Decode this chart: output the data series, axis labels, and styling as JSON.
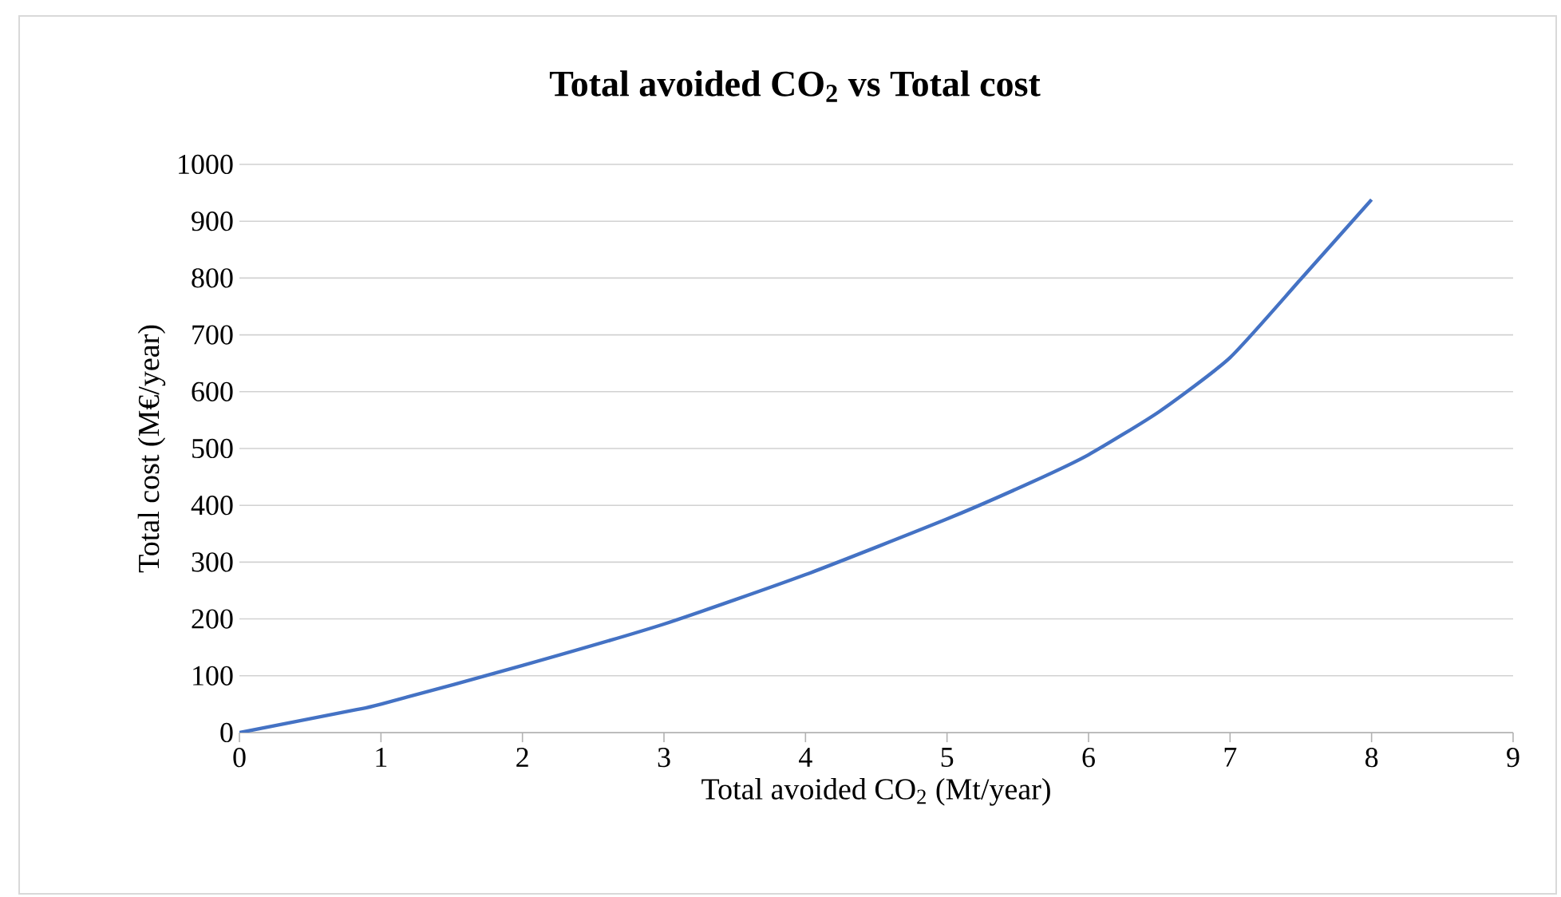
{
  "chart_data": {
    "type": "line",
    "title": "Total avoided CO$_{2}$ vs Total cost",
    "xlabel": "Total avoided CO$_{2}$ (Mt/year)",
    "ylabel": "Total cost (M€/year)",
    "series": [
      {
        "color": "#4472c4",
        "x": [
          0,
          0.8,
          1,
          2,
          3,
          4,
          5,
          5.6,
          6,
          6.5,
          7,
          7.5,
          8
        ],
        "values": [
          0,
          39,
          50,
          118,
          191,
          278,
          376,
          441,
          489,
          565,
          660,
          798,
          938
        ]
      }
    ],
    "xlim": [
      0,
      9
    ],
    "xticks": [
      0,
      1,
      2,
      3,
      4,
      5,
      6,
      7,
      8,
      9
    ],
    "ylim": [
      0,
      1000
    ],
    "yticks": [
      0,
      100,
      200,
      300,
      400,
      500,
      600,
      700,
      800,
      900,
      1000
    ],
    "grid": "y",
    "marker": "none",
    "line_style": "solid"
  }
}
